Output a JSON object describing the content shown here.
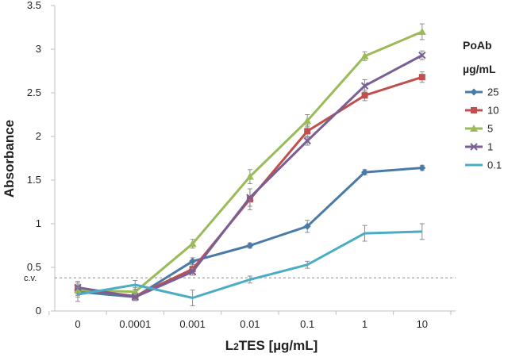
{
  "chart_data": {
    "type": "line",
    "categories": [
      "0",
      "0.0001",
      "0.001",
      "0.01",
      "0.1",
      "1",
      "10"
    ],
    "xlabel_main": "L",
    "xlabel_sub": "2",
    "xlabel_rest": "TES [µg/mL]",
    "ylabel": "Absorbance",
    "ylim": [
      0,
      3.5
    ],
    "yticks": [
      "0",
      "0.5",
      "1",
      "1.5",
      "2",
      "2.5",
      "3",
      "3.5"
    ],
    "grid": false,
    "legend_position": "right",
    "legend_title_line1": "PoAb",
    "legend_title_line2": "µg/mL",
    "cutoff": {
      "label": "c.v.",
      "value": 0.38,
      "color": "#999999"
    },
    "series": [
      {
        "name": "25",
        "color": "#4a7aa7",
        "marker": "diamond",
        "values": [
          0.22,
          0.16,
          0.57,
          0.75,
          0.97,
          1.59,
          1.64
        ],
        "errors": [
          0.06,
          0.04,
          0.04,
          0.03,
          0.07,
          0.03,
          0.03
        ]
      },
      {
        "name": "10",
        "color": "#c0504d",
        "marker": "square",
        "values": [
          0.25,
          0.17,
          0.48,
          1.28,
          2.06,
          2.47,
          2.68
        ],
        "errors": [
          0.07,
          0.05,
          0.05,
          0.12,
          0.07,
          0.06,
          0.06
        ]
      },
      {
        "name": "5",
        "color": "#9bbb59",
        "marker": "triangle",
        "values": [
          0.24,
          0.22,
          0.77,
          1.54,
          2.18,
          2.92,
          3.2
        ],
        "errors": [
          0.06,
          0.05,
          0.05,
          0.08,
          0.07,
          0.05,
          0.09
        ]
      },
      {
        "name": "1",
        "color": "#7a5f96",
        "marker": "x",
        "values": [
          0.27,
          0.16,
          0.45,
          1.3,
          1.95,
          2.58,
          2.93
        ],
        "errors": [
          0.07,
          0.04,
          0.04,
          0.1,
          0.05,
          0.07,
          0.05
        ]
      },
      {
        "name": "0.1",
        "color": "#4bacc6",
        "marker": "none",
        "values": [
          0.19,
          0.3,
          0.15,
          0.36,
          0.53,
          0.89,
          0.91
        ],
        "errors": [
          0.08,
          0.05,
          0.09,
          0.04,
          0.04,
          0.09,
          0.09
        ]
      }
    ]
  }
}
